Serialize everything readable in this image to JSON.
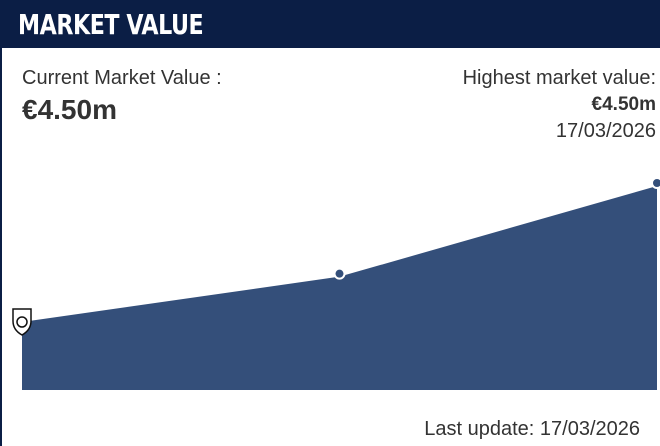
{
  "header": {
    "title": "MARKET VALUE"
  },
  "current": {
    "label": "Current Market Value :",
    "value": "€4.50m"
  },
  "highest": {
    "label": "Highest market value:",
    "value": "€4.50m",
    "date": "17/03/2026"
  },
  "footer": {
    "last_update": "Last update: 17/03/2026"
  },
  "chart_data": {
    "type": "area",
    "categories": [
      null,
      null,
      null
    ],
    "values": [
      1.5,
      2.5,
      4.5
    ],
    "ylim": [
      0,
      4.5
    ],
    "color": "#344f7a",
    "line_color": "#ffffff"
  }
}
